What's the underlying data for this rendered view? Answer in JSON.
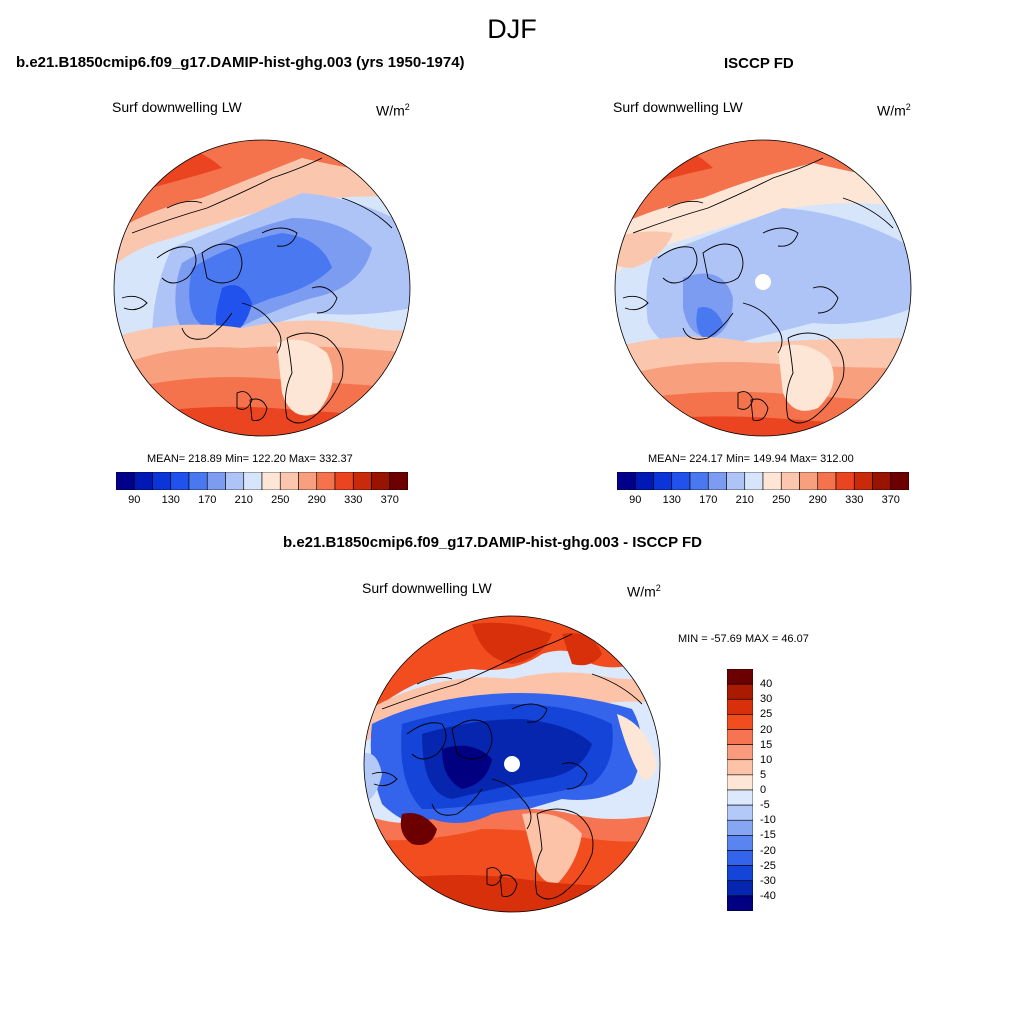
{
  "figure": {
    "title": "DJF"
  },
  "panels": [
    {
      "id": "model",
      "title": "b.e21.B1850cmip6.f09_g17.DAMIP-hist-ghg.003 (yrs 1950-1974)",
      "variable": "Surf downwelling LW",
      "units_base": "W/m",
      "units_exp": "2",
      "stats": "MEAN= 218.89  Min= 122.20  Max= 332.37"
    },
    {
      "id": "obs",
      "title": "ISCCP FD",
      "variable": "Surf downwelling LW",
      "units_base": "W/m",
      "units_exp": "2",
      "stats": "MEAN= 224.17  Min= 149.94  Max= 312.00"
    },
    {
      "id": "diff",
      "title": "b.e21.B1850cmip6.f09_g17.DAMIP-hist-ghg.003 - ISCCP FD",
      "variable": "Surf downwelling LW",
      "units_base": "W/m",
      "units_exp": "2",
      "stats": "MIN = -57.69 MAX =  46.07"
    }
  ],
  "colorbars": {
    "abs": {
      "orientation": "horizontal",
      "labels": [
        "90",
        "130",
        "170",
        "210",
        "250",
        "290",
        "330",
        "370"
      ],
      "colors": [
        "#00008a",
        "#0018b4",
        "#0a35d8",
        "#2152ee",
        "#4a78f0",
        "#7c9cf2",
        "#aec3f6",
        "#d7e5fb",
        "#fde6d6",
        "#fbc6ae",
        "#f89f7e",
        "#f4734d",
        "#ea4520",
        "#c92a0a",
        "#981300",
        "#6c0000"
      ]
    },
    "diff": {
      "orientation": "vertical",
      "labels": [
        "40",
        "30",
        "25",
        "20",
        "15",
        "10",
        "5",
        "0",
        "-5",
        "-10",
        "-15",
        "-20",
        "-25",
        "-30",
        "-40"
      ],
      "colors": [
        "#6c0000",
        "#a91a00",
        "#d8300b",
        "#f24d1e",
        "#f67451",
        "#f99b7c",
        "#fcc3a8",
        "#fde6d6",
        "#dce8fb",
        "#b3c9f7",
        "#86a6f3",
        "#5a84f0",
        "#3463ec",
        "#1444d8",
        "#0626b0",
        "#000080"
      ]
    }
  }
}
